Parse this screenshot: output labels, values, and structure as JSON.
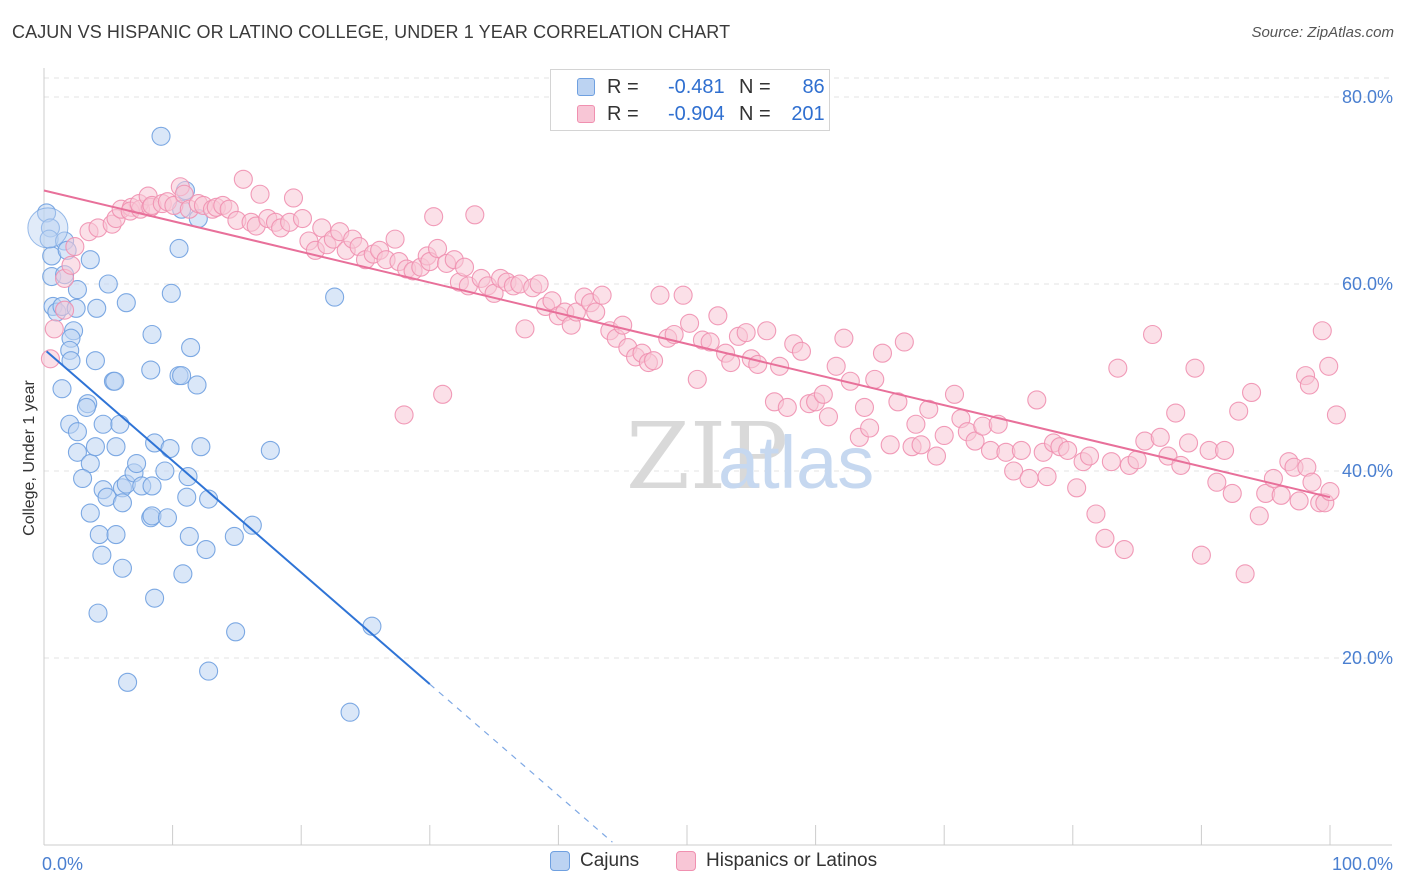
{
  "title": "CAJUN VS HISPANIC OR LATINO COLLEGE, UNDER 1 YEAR CORRELATION CHART",
  "source": "Source: ZipAtlas.com",
  "watermark": {
    "zip": "ZIP",
    "atlas": "atlas"
  },
  "legend": {
    "r_label": "R =",
    "n_label": "N =",
    "rows": [
      {
        "r": "-0.481",
        "n": "86",
        "color": "#6fa0e0",
        "fill": "#bcd3f2"
      },
      {
        "r": "-0.904",
        "n": "201",
        "color": "#f090b0",
        "fill": "#f8c6d6"
      }
    ]
  },
  "bottom_legend": [
    {
      "label": "Cajuns",
      "color": "#6fa0e0",
      "fill": "#bcd3f2"
    },
    {
      "label": "Hispanics or Latinos",
      "color": "#f090b0",
      "fill": "#f8c6d6"
    }
  ],
  "chart_data": {
    "type": "scatter",
    "title": "CAJUN VS HISPANIC OR LATINO COLLEGE, UNDER 1 YEAR CORRELATION CHART",
    "xlabel": "",
    "ylabel": "College, Under 1 year",
    "xlim": [
      0,
      100
    ],
    "ylim": [
      0,
      80
    ],
    "x_tick_labels": [
      "0.0%",
      "100.0%"
    ],
    "y_ticks": [
      20,
      40,
      60,
      80
    ],
    "y_tick_labels": [
      "20.0%",
      "40.0%",
      "60.0%",
      "80.0%"
    ],
    "series": [
      {
        "name": "Cajuns",
        "color": "#6fa0e0",
        "fill": "#bcd3f2",
        "R": -0.481,
        "N": 86,
        "trend": {
          "x0": 0.2,
          "y0": 52.8,
          "x1": 30,
          "y1": 17.2,
          "dash_to_x": 44.2,
          "dash_to_y": 0.3
        },
        "points": [
          [
            0.2,
            67.6
          ],
          [
            0.5,
            66.0
          ],
          [
            0.4,
            64.8
          ],
          [
            0.6,
            63.0
          ],
          [
            1.6,
            64.6
          ],
          [
            1.8,
            63.6
          ],
          [
            3.6,
            62.6
          ],
          [
            0.6,
            60.8
          ],
          [
            1.6,
            61.0
          ],
          [
            2.6,
            59.4
          ],
          [
            0.7,
            57.6
          ],
          [
            1.0,
            57.0
          ],
          [
            1.4,
            57.6
          ],
          [
            2.5,
            57.4
          ],
          [
            4.1,
            57.4
          ],
          [
            2.3,
            55.0
          ],
          [
            2.1,
            54.2
          ],
          [
            2.0,
            52.9
          ],
          [
            2.1,
            51.8
          ],
          [
            4.0,
            51.8
          ],
          [
            1.4,
            48.8
          ],
          [
            3.4,
            47.2
          ],
          [
            3.3,
            46.8
          ],
          [
            5.4,
            49.6
          ],
          [
            5.5,
            49.6
          ],
          [
            2.0,
            45.0
          ],
          [
            2.6,
            44.2
          ],
          [
            4.6,
            45.0
          ],
          [
            5.9,
            45.0
          ],
          [
            2.6,
            42.0
          ],
          [
            3.6,
            40.8
          ],
          [
            4.0,
            42.6
          ],
          [
            5.6,
            42.6
          ],
          [
            3.0,
            39.2
          ],
          [
            4.6,
            38.0
          ],
          [
            4.9,
            37.2
          ],
          [
            6.1,
            38.2
          ],
          [
            6.4,
            38.6
          ],
          [
            7.0,
            39.8
          ],
          [
            7.2,
            40.8
          ],
          [
            7.6,
            38.4
          ],
          [
            3.6,
            35.5
          ],
          [
            4.3,
            33.2
          ],
          [
            5.6,
            33.2
          ],
          [
            4.5,
            31.0
          ],
          [
            6.1,
            36.6
          ],
          [
            8.3,
            35.0
          ],
          [
            8.4,
            35.2
          ],
          [
            9.6,
            35.0
          ],
          [
            6.1,
            29.6
          ],
          [
            4.2,
            24.8
          ],
          [
            8.6,
            26.4
          ],
          [
            6.5,
            17.4
          ],
          [
            8.4,
            54.6
          ],
          [
            8.3,
            50.8
          ],
          [
            10.5,
            50.2
          ],
          [
            10.7,
            50.2
          ],
          [
            11.9,
            49.2
          ],
          [
            8.6,
            43.0
          ],
          [
            9.8,
            42.4
          ],
          [
            9.4,
            40.0
          ],
          [
            8.4,
            38.4
          ],
          [
            11.2,
            39.4
          ],
          [
            11.1,
            37.2
          ],
          [
            12.2,
            42.6
          ],
          [
            11.3,
            33.0
          ],
          [
            12.6,
            31.6
          ],
          [
            10.8,
            29.0
          ],
          [
            12.8,
            37.0
          ],
          [
            14.8,
            33.0
          ],
          [
            16.2,
            34.2
          ],
          [
            17.6,
            42.2
          ],
          [
            14.9,
            22.8
          ],
          [
            12.8,
            18.6
          ],
          [
            9.1,
            75.8
          ],
          [
            10.5,
            63.8
          ],
          [
            9.9,
            59.0
          ],
          [
            11.4,
            53.2
          ],
          [
            22.6,
            58.6
          ],
          [
            25.5,
            23.4
          ],
          [
            23.8,
            14.2
          ],
          [
            11.0,
            70.0
          ],
          [
            10.7,
            68.0
          ],
          [
            12.0,
            67.0
          ],
          [
            6.4,
            58.0
          ],
          [
            5.0,
            60.0
          ]
        ]
      },
      {
        "name": "Hispanics or Latinos",
        "color": "#f090b0",
        "fill": "#f8c6d6",
        "R": -0.904,
        "N": 201,
        "trend": {
          "x0": 0,
          "y0": 70.0,
          "x1": 100,
          "y1": 37.2
        },
        "points": [
          [
            0.5,
            52.0
          ],
          [
            0.8,
            55.2
          ],
          [
            1.6,
            57.2
          ],
          [
            1.6,
            60.6
          ],
          [
            2.1,
            62.0
          ],
          [
            2.4,
            64.0
          ],
          [
            3.5,
            65.6
          ],
          [
            4.2,
            66.0
          ],
          [
            5.3,
            66.4
          ],
          [
            5.6,
            67.0
          ],
          [
            6.0,
            68.0
          ],
          [
            6.8,
            68.2
          ],
          [
            6.7,
            67.8
          ],
          [
            7.5,
            68.0
          ],
          [
            7.4,
            68.6
          ],
          [
            8.1,
            69.4
          ],
          [
            8.3,
            68.2
          ],
          [
            8.4,
            68.4
          ],
          [
            9.2,
            68.6
          ],
          [
            9.6,
            68.8
          ],
          [
            10.1,
            68.4
          ],
          [
            10.6,
            70.4
          ],
          [
            10.9,
            69.6
          ],
          [
            11.3,
            68.0
          ],
          [
            12.0,
            68.6
          ],
          [
            12.4,
            68.4
          ],
          [
            13.1,
            68.0
          ],
          [
            13.4,
            68.2
          ],
          [
            13.9,
            68.4
          ],
          [
            14.4,
            68.0
          ],
          [
            15.0,
            66.8
          ],
          [
            15.5,
            71.2
          ],
          [
            16.1,
            66.6
          ],
          [
            16.5,
            66.2
          ],
          [
            16.8,
            69.6
          ],
          [
            17.4,
            67.0
          ],
          [
            18.0,
            66.6
          ],
          [
            18.4,
            66.0
          ],
          [
            19.1,
            66.6
          ],
          [
            19.4,
            69.2
          ],
          [
            20.1,
            67.0
          ],
          [
            20.6,
            64.6
          ],
          [
            21.1,
            63.6
          ],
          [
            21.6,
            66.0
          ],
          [
            22.0,
            64.2
          ],
          [
            22.5,
            64.8
          ],
          [
            23.0,
            65.6
          ],
          [
            23.5,
            63.6
          ],
          [
            24.0,
            64.8
          ],
          [
            24.5,
            64.0
          ],
          [
            25.0,
            62.6
          ],
          [
            25.6,
            63.2
          ],
          [
            26.1,
            63.6
          ],
          [
            26.6,
            62.6
          ],
          [
            27.3,
            64.8
          ],
          [
            27.6,
            62.4
          ],
          [
            28.2,
            61.6
          ],
          [
            28.7,
            61.4
          ],
          [
            29.3,
            61.8
          ],
          [
            29.8,
            63.0
          ],
          [
            30.0,
            62.4
          ],
          [
            30.3,
            67.2
          ],
          [
            30.6,
            63.8
          ],
          [
            31.3,
            62.2
          ],
          [
            31.9,
            62.6
          ],
          [
            32.3,
            60.2
          ],
          [
            32.7,
            61.8
          ],
          [
            33.0,
            59.8
          ],
          [
            33.5,
            67.4
          ],
          [
            34.0,
            60.6
          ],
          [
            34.5,
            59.8
          ],
          [
            35.0,
            59.0
          ],
          [
            35.5,
            60.6
          ],
          [
            36.0,
            60.2
          ],
          [
            36.5,
            59.8
          ],
          [
            37.0,
            60.0
          ],
          [
            37.4,
            55.2
          ],
          [
            38.0,
            59.6
          ],
          [
            38.5,
            60.0
          ],
          [
            39.0,
            57.6
          ],
          [
            39.5,
            58.2
          ],
          [
            40.0,
            56.6
          ],
          [
            40.5,
            57.0
          ],
          [
            41.0,
            55.6
          ],
          [
            41.4,
            57.0
          ],
          [
            42.0,
            58.6
          ],
          [
            42.5,
            58.0
          ],
          [
            42.9,
            57.0
          ],
          [
            43.4,
            58.8
          ],
          [
            44.0,
            55.0
          ],
          [
            44.5,
            54.2
          ],
          [
            45.0,
            55.6
          ],
          [
            45.4,
            53.2
          ],
          [
            46.0,
            52.2
          ],
          [
            46.5,
            52.6
          ],
          [
            47.0,
            51.6
          ],
          [
            47.4,
            51.8
          ],
          [
            47.9,
            58.8
          ],
          [
            48.5,
            54.2
          ],
          [
            49.0,
            54.6
          ],
          [
            49.7,
            58.8
          ],
          [
            50.2,
            55.8
          ],
          [
            50.8,
            49.8
          ],
          [
            51.2,
            54.0
          ],
          [
            51.8,
            53.8
          ],
          [
            52.4,
            56.6
          ],
          [
            53.0,
            52.6
          ],
          [
            53.4,
            51.6
          ],
          [
            54.0,
            54.4
          ],
          [
            54.6,
            54.8
          ],
          [
            55.0,
            52.0
          ],
          [
            55.5,
            51.4
          ],
          [
            56.2,
            55.0
          ],
          [
            56.8,
            47.4
          ],
          [
            57.2,
            51.2
          ],
          [
            57.8,
            46.8
          ],
          [
            58.3,
            53.6
          ],
          [
            58.9,
            52.8
          ],
          [
            59.5,
            47.2
          ],
          [
            60.0,
            47.4
          ],
          [
            60.6,
            48.2
          ],
          [
            61.0,
            45.8
          ],
          [
            61.6,
            51.2
          ],
          [
            62.2,
            54.2
          ],
          [
            62.7,
            49.6
          ],
          [
            63.4,
            43.6
          ],
          [
            63.8,
            46.8
          ],
          [
            64.2,
            44.6
          ],
          [
            64.6,
            49.8
          ],
          [
            65.2,
            52.6
          ],
          [
            65.8,
            42.8
          ],
          [
            66.4,
            47.4
          ],
          [
            66.9,
            53.8
          ],
          [
            67.5,
            42.6
          ],
          [
            67.8,
            45.0
          ],
          [
            68.2,
            42.8
          ],
          [
            68.8,
            46.6
          ],
          [
            69.4,
            41.6
          ],
          [
            70.0,
            43.8
          ],
          [
            70.8,
            48.2
          ],
          [
            71.3,
            45.6
          ],
          [
            71.8,
            44.2
          ],
          [
            72.4,
            43.2
          ],
          [
            73.0,
            44.8
          ],
          [
            73.6,
            42.2
          ],
          [
            74.2,
            45.0
          ],
          [
            74.8,
            42.0
          ],
          [
            75.4,
            40.0
          ],
          [
            76.0,
            42.2
          ],
          [
            76.6,
            39.2
          ],
          [
            77.2,
            47.6
          ],
          [
            77.7,
            42.0
          ],
          [
            78.0,
            39.4
          ],
          [
            78.5,
            43.0
          ],
          [
            79.0,
            42.6
          ],
          [
            79.6,
            42.2
          ],
          [
            80.3,
            38.2
          ],
          [
            80.8,
            41.0
          ],
          [
            81.3,
            41.6
          ],
          [
            81.8,
            35.4
          ],
          [
            82.5,
            32.8
          ],
          [
            83.0,
            41.0
          ],
          [
            83.5,
            51.0
          ],
          [
            84.0,
            31.6
          ],
          [
            84.4,
            40.6
          ],
          [
            85.0,
            41.2
          ],
          [
            85.6,
            43.2
          ],
          [
            86.2,
            54.6
          ],
          [
            86.8,
            43.6
          ],
          [
            87.4,
            41.6
          ],
          [
            88.0,
            46.2
          ],
          [
            88.4,
            40.6
          ],
          [
            89.0,
            43.0
          ],
          [
            89.5,
            51.0
          ],
          [
            90.0,
            31.0
          ],
          [
            90.6,
            42.2
          ],
          [
            91.2,
            38.8
          ],
          [
            91.8,
            42.2
          ],
          [
            92.4,
            37.6
          ],
          [
            92.9,
            46.4
          ],
          [
            93.4,
            29.0
          ],
          [
            93.9,
            48.4
          ],
          [
            94.5,
            35.2
          ],
          [
            95.0,
            37.6
          ],
          [
            95.6,
            39.2
          ],
          [
            96.2,
            37.4
          ],
          [
            96.8,
            41.0
          ],
          [
            97.2,
            40.4
          ],
          [
            97.6,
            36.8
          ],
          [
            98.2,
            40.4
          ],
          [
            98.6,
            38.8
          ],
          [
            99.2,
            36.6
          ],
          [
            99.6,
            36.6
          ],
          [
            100.0,
            37.8
          ],
          [
            98.1,
            50.2
          ],
          [
            98.4,
            49.2
          ],
          [
            99.4,
            55.0
          ],
          [
            99.9,
            51.2
          ],
          [
            100.5,
            46.0
          ],
          [
            31.0,
            48.2
          ],
          [
            28.0,
            46.0
          ]
        ]
      }
    ]
  }
}
